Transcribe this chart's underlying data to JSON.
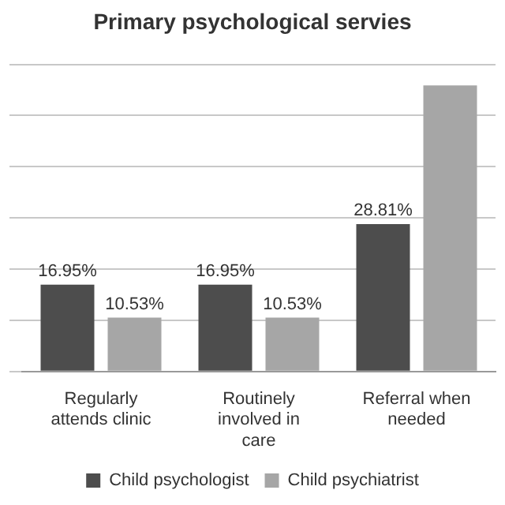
{
  "chart_data": {
    "type": "bar",
    "title": "Primary psychological servies",
    "categories": [
      "Regularly attends clinic",
      "Routinely involved in care",
      "Referral when needed"
    ],
    "series": [
      {
        "name": "Child psychologist",
        "color": "#4d4d4d",
        "values": [
          16.95,
          16.95,
          28.81
        ],
        "value_labels": [
          "16.95%",
          "16.95%",
          "28.81%"
        ]
      },
      {
        "name": "Child psychiatrist",
        "color": "#a6a6a6",
        "values": [
          10.53,
          10.53,
          55.9
        ],
        "value_labels": [
          "10.53%",
          "10.53%",
          null
        ]
      }
    ],
    "ylim": [
      0,
      60
    ],
    "yticks": [
      {
        "value": 0,
        "label": null
      },
      {
        "value": 10,
        "label": null
      },
      {
        "value": 20,
        "label": null
      },
      {
        "value": 30,
        "label": null
      },
      {
        "value": 40,
        "label": null
      },
      {
        "value": 50,
        "label": null
      },
      {
        "value": 60,
        "label": null
      }
    ],
    "grid": "y",
    "legend": "bottom",
    "tick_labels": "x"
  }
}
